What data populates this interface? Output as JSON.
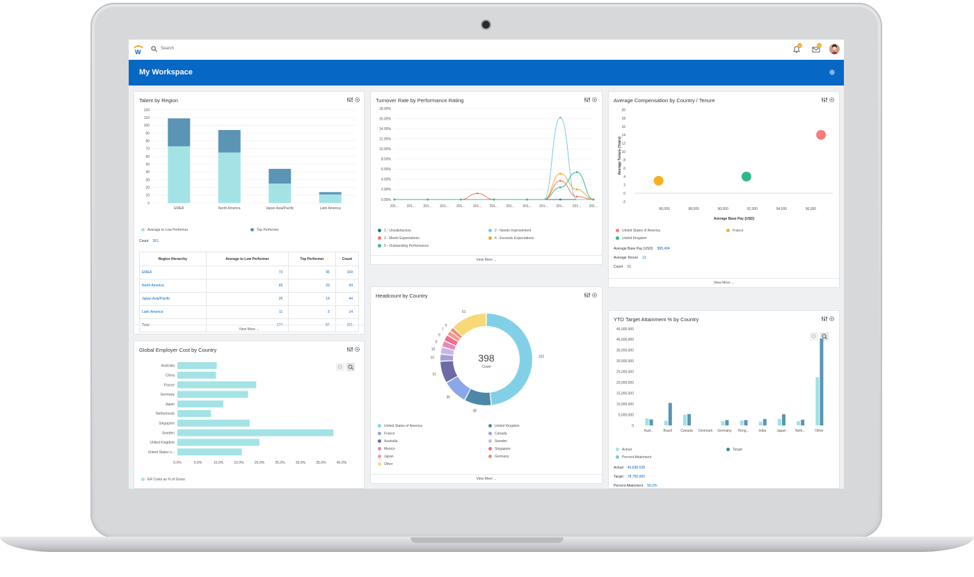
{
  "topbar": {
    "search_placeholder": "Search",
    "notifications_count": "12",
    "inbox_count": "12"
  },
  "header": {
    "title": "My Workspace"
  },
  "talent": {
    "title": "Talent by Region",
    "legend": [
      "Average to Low Performer",
      "Top Performer"
    ],
    "count_label": "Count",
    "count_value": "261",
    "table": {
      "headers": [
        "Region Hierarchy",
        "Average to Low Performer",
        "Top Performer",
        "Count"
      ],
      "rows": [
        [
          "EMEA",
          "73",
          "36",
          "109"
        ],
        [
          "North America",
          "65",
          "29",
          "94"
        ],
        [
          "Japan Asia/Pacific",
          "25",
          "19",
          "44"
        ],
        [
          "Latin America",
          "11",
          "3",
          "14"
        ]
      ],
      "total": [
        "Total",
        "174",
        "87",
        "261"
      ]
    },
    "view_more": "View More ..."
  },
  "turnover": {
    "title": "Turnover Rate by Performance Rating",
    "legend": [
      "1 - Unsatisfactory",
      "2 - Needs Improvement",
      "3 - Meets Expectations",
      "4 - Exceeds Expectations",
      "5 - Outstanding Performance"
    ],
    "view_more": "View More ..."
  },
  "avgcomp": {
    "title": "Average Compensation by Country / Tenure",
    "legend": [
      "United States of America",
      "France",
      "United Kingdom"
    ],
    "stats": [
      [
        "Average Base Pay (USD)",
        "$95,494"
      ],
      [
        "Average Tenure",
        "13"
      ],
      [
        "Count",
        "15"
      ]
    ],
    "view_more": "View More ..."
  },
  "headcount": {
    "title": "Headcount by Country",
    "center_value": "398",
    "center_label": "Count",
    "legend": [
      "United States of America",
      "United Kingdom",
      "France",
      "Canada",
      "Australia",
      "Sweden",
      "Mexico",
      "Singapore",
      "Japan",
      "Germany",
      "Other"
    ],
    "view_more": "View More ..."
  },
  "gec": {
    "title": "Global Employer Cost by Country",
    "legend": [
      "ER Costs as % of Gross"
    ]
  },
  "ytd": {
    "title": "YTD Target Attainment % by Country",
    "legend": [
      "Actual",
      "Target",
      "Percent Attainment"
    ],
    "stats": [
      [
        "Actual",
        "46,638,538"
      ],
      [
        "Target",
        "78,750,000"
      ],
      [
        "Percent Attainment",
        "59.2%"
      ]
    ]
  },
  "colors": {
    "accent": "#0667c4",
    "teal_light": "#a3e3e6",
    "teal_dark": "#5b94b5"
  },
  "chart_data": [
    {
      "type": "bar",
      "name": "Talent by Region",
      "stacked": true,
      "categories": [
        "EMEA",
        "North America",
        "Japan Asia/Pacific",
        "Latin America"
      ],
      "series": [
        {
          "name": "Average to Low Performer",
          "values": [
            73,
            65,
            25,
            11
          ],
          "color": "#a3e3e6"
        },
        {
          "name": "Top Performer",
          "values": [
            36,
            29,
            19,
            3
          ],
          "color": "#5b94b5"
        }
      ],
      "ylim": [
        0,
        120
      ],
      "yticks": [
        "0",
        "10",
        "20",
        "30",
        "40",
        "50",
        "60",
        "70",
        "80",
        "90",
        "100",
        "110",
        "120"
      ]
    },
    {
      "type": "line",
      "name": "Turnover Rate by Performance Rating",
      "x": [
        "201...",
        "201...",
        "201...",
        "201...",
        "201...",
        "201...",
        "201...",
        "201...",
        "201...",
        "201...",
        "201...",
        "201...",
        "201..."
      ],
      "yticks": [
        "0.00%",
        "2.00%",
        "4.00%",
        "6.00%",
        "8.00%",
        "10.00%",
        "12.00%",
        "14.00%",
        "16.00%",
        "18.00%"
      ],
      "ylim": [
        0,
        18
      ],
      "series": [
        {
          "name": "1 - Unsatisfactory",
          "color": "#1e7a8c",
          "values": [
            0,
            0,
            0,
            0,
            0,
            0,
            0,
            0,
            0,
            0,
            0,
            0,
            0
          ]
        },
        {
          "name": "2 - Needs Improvement",
          "color": "#7cc6e6",
          "values": [
            0,
            0,
            0,
            0,
            0,
            0,
            0,
            0,
            0,
            0,
            16.2,
            0,
            0
          ]
        },
        {
          "name": "3 - Meets Expectations",
          "color": "#f47560",
          "values": [
            0,
            0,
            0,
            0,
            0,
            1.2,
            0,
            0,
            0,
            0,
            3.7,
            0.6,
            0
          ]
        },
        {
          "name": "4 - Exceeds Expectations",
          "color": "#f5a623",
          "values": [
            0,
            0,
            0,
            0,
            0,
            0,
            0,
            0,
            0,
            0,
            5.1,
            2.0,
            0
          ]
        },
        {
          "name": "5 - Outstanding Performance",
          "color": "#3ab795",
          "values": [
            0,
            0,
            0,
            0,
            0,
            0,
            0,
            0,
            0,
            0,
            2.4,
            5.4,
            0
          ]
        }
      ]
    },
    {
      "type": "scatter",
      "name": "Average Compensation by Country / Tenure",
      "xlabel": "Average Base Pay (USD)",
      "ylabel": "Average Tenure (Years)",
      "xlim": [
        84000,
        97500
      ],
      "ylim": [
        -2,
        20
      ],
      "xticks": [
        "86,000",
        "88,000",
        "90,000",
        "92,000",
        "94,000",
        "96,000"
      ],
      "yticks": [
        "-2",
        "0",
        "2",
        "4",
        "6",
        "8",
        "10",
        "12",
        "14",
        "16",
        "18",
        "20"
      ],
      "series": [
        {
          "name": "United States of America",
          "x": 96700,
          "y": 14,
          "size": 3,
          "color": "#fb7b7b"
        },
        {
          "name": "France",
          "x": 85600,
          "y": 3,
          "size": 1,
          "color": "#f5b024"
        },
        {
          "name": "United Kingdom",
          "x": 91600,
          "y": 4,
          "size": 1,
          "color": "#31b887"
        }
      ]
    },
    {
      "type": "pie",
      "name": "Headcount by Country",
      "donut": true,
      "total": 398,
      "slices": [
        {
          "label": "United States of America",
          "value": 192,
          "color": "#82d0e8"
        },
        {
          "label": "United Kingdom",
          "value": 38,
          "color": "#4d88a8"
        },
        {
          "label": "France",
          "value": 35,
          "color": "#8aa7e8"
        },
        {
          "label": "Australia",
          "value": 31,
          "color": "#6e6aa8"
        },
        {
          "label": "Canada",
          "value": 10,
          "color": "#a3a0d8"
        },
        {
          "label": "Sweden",
          "value": 10,
          "color": "#c9b6e8"
        },
        {
          "label": "Mexico",
          "value": 9,
          "color": "#e28bb8"
        },
        {
          "label": "Singapore",
          "value": 9,
          "color": "#f46a8a"
        },
        {
          "label": "Japan",
          "value": 7,
          "color": "#f49a8a"
        },
        {
          "label": "Germany",
          "value": 6,
          "color": "#f58a6a"
        },
        {
          "label": "Other",
          "value": 51,
          "color": "#f8d978"
        }
      ]
    },
    {
      "type": "bar",
      "name": "Global Employer Cost by Country",
      "orientation": "horizontal",
      "categories": [
        "Australia",
        "China",
        "France",
        "Germany",
        "Japan",
        "Netherlands",
        "Singapore",
        "Sweden",
        "United Kingdom",
        "United States o..."
      ],
      "values": [
        9.6,
        9.4,
        19.2,
        17.2,
        11.2,
        8.2,
        17.6,
        38.0,
        20.0,
        15.7
      ],
      "series_name": "ER Costs as % of Gross",
      "xlim": [
        0,
        40
      ],
      "xticks": [
        "0.0%",
        "5.0%",
        "10.0%",
        "15.0%",
        "20.0%",
        "25.0%",
        "30.0%",
        "35.0%",
        "40.0%"
      ]
    },
    {
      "type": "bar",
      "name": "YTD Target Attainment % by Country",
      "categories": [
        "Aust...",
        "Brazil",
        "Canada",
        "Denmark",
        "Germany",
        "Hong...",
        "India",
        "Japan",
        "Neth...",
        "Other"
      ],
      "series": [
        {
          "name": "Actual",
          "values": [
            3300000,
            2200000,
            5000000,
            0,
            2000000,
            2300000,
            1800000,
            3000000,
            2000000,
            22500000
          ],
          "color": "#9ee2e6"
        },
        {
          "name": "Target",
          "values": [
            2800000,
            10500000,
            5300000,
            0,
            2500000,
            2500000,
            3000000,
            5200000,
            2700000,
            40500000
          ],
          "color": "#5b94b5"
        }
      ],
      "ylim": [
        0,
        45000000
      ],
      "yticks": [
        "0",
        "5,000,000",
        "10,000,000",
        "15,000,000",
        "20,000,000",
        "25,000,000",
        "30,000,000",
        "35,000,000",
        "40,000,000",
        "45,000,000"
      ]
    }
  ]
}
